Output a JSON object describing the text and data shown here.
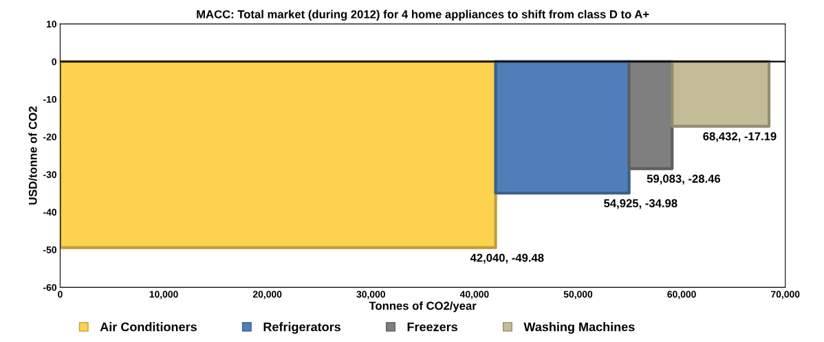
{
  "chart_data": {
    "type": "area",
    "title": "MACC: Total market (during 2012) for 4 home appliances to shift from class D to A+",
    "xlabel": "Tonnes of CO2/year",
    "ylabel": "USD/tonne of CO2",
    "series": [
      {
        "name": "Air Conditioners",
        "color": "#fdd24f",
        "x": [
          0,
          42040
        ],
        "values": [
          -49.48,
          -49.48
        ]
      },
      {
        "name": "Refrigerators",
        "color": "#4f7fb8",
        "x": [
          42040,
          54925
        ],
        "values": [
          -34.98,
          -34.98
        ]
      },
      {
        "name": "Freezers",
        "color": "#7f7f7f",
        "x": [
          54925,
          59083
        ],
        "values": [
          -28.46,
          -28.46
        ]
      },
      {
        "name": "Washing Machines",
        "color": "#c4bc97",
        "x": [
          59083,
          68432
        ],
        "values": [
          -17.19,
          -17.19
        ]
      }
    ],
    "annotations": [
      {
        "text": "42,040, -49.48",
        "x": 42040,
        "y": -49.48
      },
      {
        "text": "54,925, -34.98",
        "x": 54925,
        "y": -34.98
      },
      {
        "text": "59,083, -28.46",
        "x": 59083,
        "y": -28.46
      },
      {
        "text": "68,432, -17.19",
        "x": 68432,
        "y": -17.19
      }
    ],
    "xlim": [
      0,
      70000
    ],
    "xticks": [
      0,
      {
        "value": 10000,
        "label": "10,000"
      },
      {
        "value": 20000,
        "label": "20,000"
      },
      {
        "value": 30000,
        "label": "30,000"
      },
      {
        "value": 40000,
        "label": "40,000"
      },
      {
        "value": 50000,
        "label": "50,000"
      },
      {
        "value": 60000,
        "label": "60,000"
      },
      {
        "value": 70000,
        "label": "70,000"
      }
    ],
    "ylim": [
      -60,
      10
    ],
    "yticks": [
      -60,
      -50,
      -40,
      -30,
      -20,
      -10,
      0,
      10
    ],
    "ref_lines": [
      {
        "axis": "y",
        "value": 0,
        "color": "#000000"
      }
    ],
    "grid": false,
    "legend": "bottom"
  }
}
